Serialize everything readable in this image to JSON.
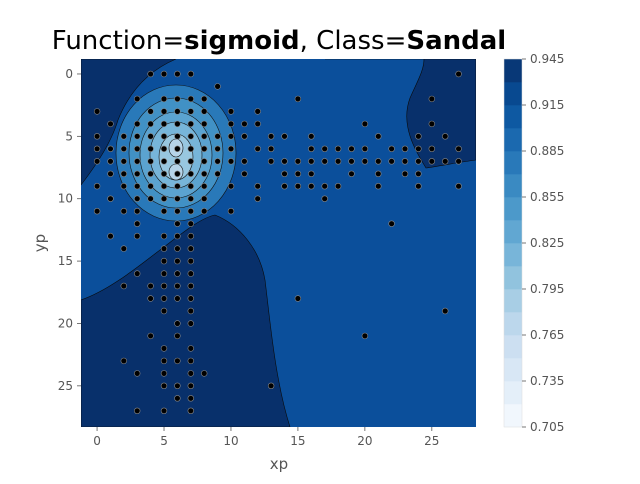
{
  "title": {
    "prefix": "Function=",
    "function": "sigmoid",
    "separator": ", Class=",
    "class": "Sandal"
  },
  "chart_data": {
    "type": "contour-scatter",
    "xlabel": "xp",
    "ylabel": "yp",
    "xlim": [
      -1.2,
      28.3
    ],
    "ylim": [
      28.3,
      -1.2
    ],
    "x_ticks": [
      0,
      5,
      10,
      15,
      20,
      25
    ],
    "y_ticks": [
      0,
      5,
      10,
      15,
      20,
      25
    ],
    "colorbar": {
      "colormap": "Blues",
      "min": 0.705,
      "max": 0.945,
      "levels": 16,
      "tick_values": [
        0.705,
        0.735,
        0.765,
        0.795,
        0.825,
        0.855,
        0.885,
        0.915,
        0.945
      ],
      "tick_labels": [
        "0.705",
        "0.735",
        "0.765",
        "0.795",
        "0.825",
        "0.855",
        "0.885",
        "0.915",
        "0.945"
      ]
    },
    "colors": {
      "background": "#0b4f9b",
      "darkest": "#08306b",
      "lightest": "#f7fbff",
      "point_fill": "#000000",
      "point_edge": "#888888"
    },
    "points": [
      [
        4,
        0
      ],
      [
        5,
        0
      ],
      [
        6,
        0
      ],
      [
        7,
        0
      ],
      [
        9,
        1
      ],
      [
        27,
        0
      ],
      [
        3,
        2
      ],
      [
        5,
        2
      ],
      [
        6,
        2
      ],
      [
        7,
        2
      ],
      [
        8,
        2
      ],
      [
        15,
        2
      ],
      [
        25,
        2
      ],
      [
        0,
        3
      ],
      [
        4,
        3
      ],
      [
        5,
        3
      ],
      [
        6,
        3
      ],
      [
        7,
        3
      ],
      [
        8,
        3
      ],
      [
        10,
        3
      ],
      [
        12,
        3
      ],
      [
        1,
        4
      ],
      [
        3,
        4
      ],
      [
        4,
        4
      ],
      [
        5,
        4
      ],
      [
        6,
        4
      ],
      [
        7,
        4
      ],
      [
        8,
        4
      ],
      [
        10,
        4
      ],
      [
        11,
        4
      ],
      [
        12,
        4
      ],
      [
        20,
        4
      ],
      [
        25,
        4
      ],
      [
        0,
        5
      ],
      [
        2,
        5
      ],
      [
        3,
        5
      ],
      [
        4,
        5
      ],
      [
        5,
        5
      ],
      [
        6,
        5
      ],
      [
        7,
        5
      ],
      [
        8,
        5
      ],
      [
        9,
        5
      ],
      [
        10,
        5
      ],
      [
        11,
        5
      ],
      [
        13,
        5
      ],
      [
        14,
        5
      ],
      [
        16,
        5
      ],
      [
        21,
        5
      ],
      [
        24,
        5
      ],
      [
        26,
        5
      ],
      [
        0,
        6
      ],
      [
        1,
        6
      ],
      [
        2,
        6
      ],
      [
        3,
        6
      ],
      [
        4,
        6
      ],
      [
        5,
        6
      ],
      [
        6,
        6
      ],
      [
        7,
        6
      ],
      [
        8,
        6
      ],
      [
        9,
        6
      ],
      [
        10,
        6
      ],
      [
        12,
        6
      ],
      [
        13,
        6
      ],
      [
        16,
        6
      ],
      [
        17,
        6
      ],
      [
        18,
        6
      ],
      [
        19,
        6
      ],
      [
        20,
        6
      ],
      [
        22,
        6
      ],
      [
        23,
        6
      ],
      [
        24,
        6
      ],
      [
        25,
        6
      ],
      [
        27,
        6
      ],
      [
        0,
        7
      ],
      [
        1,
        7
      ],
      [
        2,
        7
      ],
      [
        3,
        7
      ],
      [
        4,
        7
      ],
      [
        5,
        7
      ],
      [
        6,
        7
      ],
      [
        7,
        7
      ],
      [
        8,
        7
      ],
      [
        9,
        7
      ],
      [
        10,
        7
      ],
      [
        11,
        7
      ],
      [
        13,
        7
      ],
      [
        14,
        7
      ],
      [
        15,
        7
      ],
      [
        16,
        7
      ],
      [
        17,
        7
      ],
      [
        18,
        7
      ],
      [
        19,
        7
      ],
      [
        20,
        7
      ],
      [
        21,
        7
      ],
      [
        22,
        7
      ],
      [
        23,
        7
      ],
      [
        24,
        7
      ],
      [
        25,
        7
      ],
      [
        26,
        7
      ],
      [
        27,
        7
      ],
      [
        1,
        8
      ],
      [
        2,
        8
      ],
      [
        3,
        8
      ],
      [
        4,
        8
      ],
      [
        5,
        8
      ],
      [
        6,
        8
      ],
      [
        7,
        8
      ],
      [
        8,
        8
      ],
      [
        9,
        8
      ],
      [
        11,
        8
      ],
      [
        14,
        8
      ],
      [
        15,
        8
      ],
      [
        16,
        8
      ],
      [
        19,
        8
      ],
      [
        21,
        8
      ],
      [
        23,
        8
      ],
      [
        24,
        8
      ],
      [
        0,
        9
      ],
      [
        2,
        9
      ],
      [
        3,
        9
      ],
      [
        4,
        9
      ],
      [
        5,
        9
      ],
      [
        6,
        9
      ],
      [
        7,
        9
      ],
      [
        8,
        9
      ],
      [
        10,
        9
      ],
      [
        12,
        9
      ],
      [
        14,
        9
      ],
      [
        15,
        9
      ],
      [
        16,
        9
      ],
      [
        17,
        9
      ],
      [
        18,
        9
      ],
      [
        21,
        9
      ],
      [
        24,
        9
      ],
      [
        27,
        9
      ],
      [
        1,
        10
      ],
      [
        3,
        10
      ],
      [
        4,
        10
      ],
      [
        5,
        10
      ],
      [
        6,
        10
      ],
      [
        7,
        10
      ],
      [
        8,
        10
      ],
      [
        12,
        10
      ],
      [
        17,
        10
      ],
      [
        0,
        11
      ],
      [
        2,
        11
      ],
      [
        3,
        11
      ],
      [
        5,
        11
      ],
      [
        6,
        11
      ],
      [
        7,
        11
      ],
      [
        8,
        11
      ],
      [
        10,
        11
      ],
      [
        3,
        12
      ],
      [
        6,
        12
      ],
      [
        7,
        12
      ],
      [
        22,
        12
      ],
      [
        1,
        13
      ],
      [
        3,
        13
      ],
      [
        5,
        13
      ],
      [
        6,
        13
      ],
      [
        7,
        13
      ],
      [
        2,
        14
      ],
      [
        5,
        14
      ],
      [
        6,
        14
      ],
      [
        7,
        14
      ],
      [
        5,
        15
      ],
      [
        6,
        15
      ],
      [
        7,
        15
      ],
      [
        3,
        16
      ],
      [
        5,
        16
      ],
      [
        6,
        16
      ],
      [
        7,
        16
      ],
      [
        2,
        17
      ],
      [
        4,
        17
      ],
      [
        5,
        17
      ],
      [
        6,
        17
      ],
      [
        7,
        17
      ],
      [
        4,
        18
      ],
      [
        5,
        18
      ],
      [
        6,
        18
      ],
      [
        7,
        18
      ],
      [
        15,
        18
      ],
      [
        5,
        19
      ],
      [
        7,
        19
      ],
      [
        26,
        19
      ],
      [
        6,
        20
      ],
      [
        7,
        20
      ],
      [
        4,
        21
      ],
      [
        6,
        21
      ],
      [
        20,
        21
      ],
      [
        5,
        22
      ],
      [
        7,
        22
      ],
      [
        2,
        23
      ],
      [
        5,
        23
      ],
      [
        6,
        23
      ],
      [
        7,
        23
      ],
      [
        3,
        24
      ],
      [
        5,
        24
      ],
      [
        7,
        24
      ],
      [
        8,
        24
      ],
      [
        5,
        25
      ],
      [
        6,
        25
      ],
      [
        7,
        25
      ],
      [
        13,
        25
      ],
      [
        6,
        26
      ],
      [
        7,
        26
      ],
      [
        3,
        27
      ],
      [
        5,
        27
      ],
      [
        7,
        27
      ]
    ]
  }
}
